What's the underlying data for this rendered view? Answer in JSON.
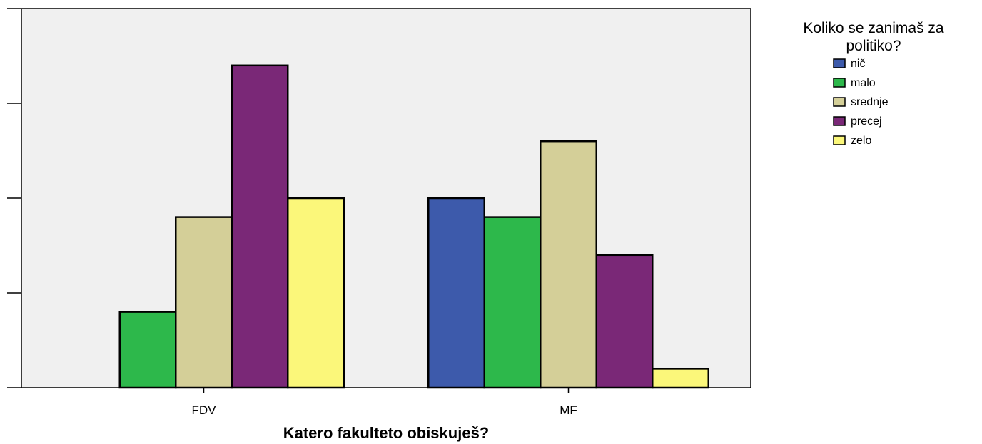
{
  "chart_data": {
    "type": "bar",
    "categories": [
      "FDV",
      "MF"
    ],
    "series": [
      {
        "name": "nič",
        "color": "#3d5aab",
        "values": [
          0,
          10
        ]
      },
      {
        "name": "malo",
        "color": "#2db84b",
        "values": [
          4,
          9
        ]
      },
      {
        "name": "srednje",
        "color": "#d4cf98",
        "values": [
          9,
          13
        ]
      },
      {
        "name": "precej",
        "color": "#7a2877",
        "values": [
          17,
          7
        ]
      },
      {
        "name": "zelo",
        "color": "#fbf77a",
        "values": [
          10,
          1
        ]
      }
    ],
    "xlabel": "Katero fakulteto obiskuješ?",
    "ylabel": "",
    "ylim": [
      0,
      20
    ],
    "y_ticks": [
      0,
      5,
      10,
      15,
      20
    ],
    "y_tick_labels_shown": false,
    "grid": false,
    "legend": {
      "title_lines": [
        "Koliko se zanimaš za",
        "politiko?"
      ],
      "placement": "right"
    },
    "plot_background": "#f0f0f0"
  }
}
